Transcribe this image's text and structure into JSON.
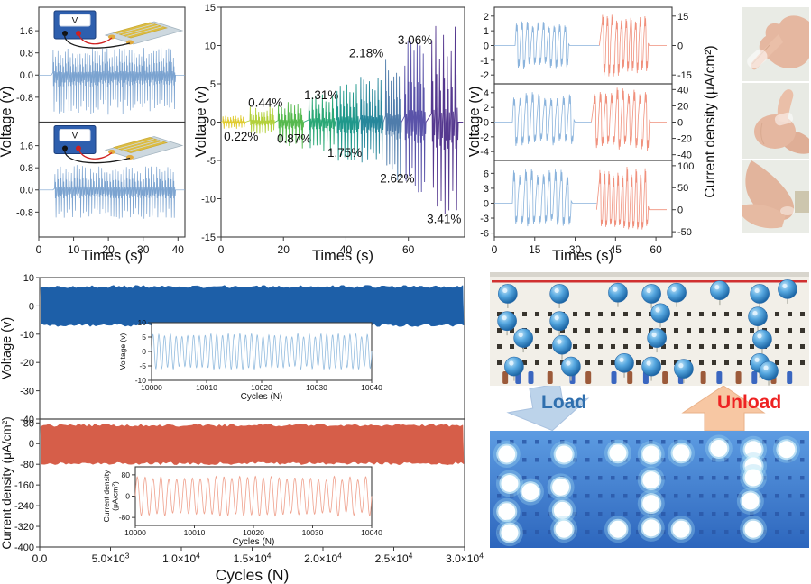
{
  "arrows": {
    "load": "Load",
    "unload": "Unload",
    "load_fill": "#bcd3ea",
    "load_stroke": "#a9c2e0",
    "load_text_color": "#2f6fae",
    "unload_fill": "#f7c7a3",
    "unload_stroke": "#eab289",
    "unload_text_color": "#ee2222"
  },
  "boards": {
    "unlit": {
      "rail_color": "#d03030",
      "leds": [
        [
          5.6,
          19
        ],
        [
          5.4,
          43
        ],
        [
          10.5,
          58
        ],
        [
          7.6,
          83
        ],
        [
          21.8,
          19
        ],
        [
          21.8,
          43
        ],
        [
          22.6,
          64
        ],
        [
          25.4,
          83
        ],
        [
          40.1,
          18
        ],
        [
          50.6,
          19
        ],
        [
          58.5,
          18
        ],
        [
          53.4,
          36
        ],
        [
          52.3,
          58
        ],
        [
          42.1,
          80
        ],
        [
          50.6,
          83
        ],
        [
          60.7,
          85
        ],
        [
          72.0,
          16
        ],
        [
          84.5,
          19
        ],
        [
          93.2,
          15
        ],
        [
          83.9,
          39
        ],
        [
          85.3,
          59
        ],
        [
          84.5,
          80
        ],
        [
          87.3,
          87
        ]
      ],
      "terminals": [
        [
          4,
          "brown"
        ],
        [
          8,
          "blue"
        ],
        [
          12,
          "blue"
        ],
        [
          18,
          "brown"
        ],
        [
          25,
          "blue"
        ],
        [
          30,
          "brown"
        ],
        [
          38,
          "blue"
        ],
        [
          43,
          "brown"
        ],
        [
          48,
          "blue"
        ],
        [
          54,
          "brown"
        ],
        [
          59,
          "blue"
        ],
        [
          66,
          "brown"
        ],
        [
          71,
          "blue"
        ],
        [
          77,
          "brown"
        ],
        [
          82,
          "blue"
        ],
        [
          88,
          "brown"
        ],
        [
          93,
          "blue"
        ]
      ]
    },
    "lit": {
      "leds": [
        [
          5.3,
          20
        ],
        [
          6.2,
          45
        ],
        [
          12.7,
          52
        ],
        [
          5.3,
          69
        ],
        [
          6.2,
          87
        ],
        [
          23.2,
          20
        ],
        [
          22.2,
          48
        ],
        [
          22.7,
          68
        ],
        [
          23.2,
          84
        ],
        [
          40.1,
          19
        ],
        [
          50.5,
          20
        ],
        [
          59.9,
          19
        ],
        [
          50.5,
          42
        ],
        [
          50.5,
          62
        ],
        [
          40.1,
          84
        ],
        [
          50.5,
          83
        ],
        [
          59.9,
          84
        ],
        [
          71.7,
          15
        ],
        [
          82.5,
          16
        ],
        [
          92.9,
          16
        ],
        [
          82.5,
          30
        ],
        [
          82.5,
          40
        ],
        [
          81.6,
          60
        ],
        [
          82.5,
          84
        ]
      ]
    }
  },
  "chart_data": {
    "panelA": {
      "type": "line",
      "xlabel": "Times (s)",
      "ylabel": "Voltage (v)",
      "meter_label": "V",
      "xlim": [
        0,
        42
      ],
      "xticks": [
        "0",
        "10",
        "20",
        "30",
        "40"
      ],
      "line_color": "#7ba3d0",
      "subplots": [
        {
          "yticks": [
            "1.6",
            "0.8",
            "0.0",
            "-0.8"
          ],
          "ylim": [
            -1.7,
            2.45
          ],
          "burst": {
            "t0": 4,
            "t1": 39.3,
            "pos": 0.9,
            "neg": 1.3,
            "cycles": 50
          }
        },
        {
          "yticks": [
            "1.6",
            "0.8",
            "0.0",
            "-0.8"
          ],
          "ylim": [
            -1.7,
            2.45
          ],
          "burst": {
            "t0": 4.5,
            "t1": 39.3,
            "pos": 0.82,
            "neg": 0.95,
            "cycles": 44
          }
        }
      ]
    },
    "panelB": {
      "type": "line",
      "xlabel": "Times (s)",
      "ylabel": "Voltage (v)",
      "xlim": [
        0,
        78
      ],
      "xticks": [
        "0",
        "20",
        "40",
        "60"
      ],
      "ylim": [
        -15,
        15
      ],
      "yticks": [
        "15",
        "10",
        "5",
        "0",
        "-5",
        "-10",
        "-15"
      ],
      "segments": [
        {
          "label": "0.22%",
          "text_color": "#cf9e1e",
          "line_color": "#e0cb2e",
          "t0": 0.5,
          "t1": 7.8,
          "cycles": 9,
          "amp": 0.8,
          "neg": 0.8,
          "lx": 0.9,
          "ly": -2.4
        },
        {
          "label": "0.44%",
          "text_color": "#9cc22b",
          "line_color": "#b3d13c",
          "t0": 9.2,
          "t1": 17.3,
          "cycles": 9,
          "amp": 1.9,
          "neg": 1.4,
          "lx": 8.7,
          "ly": 2.0
        },
        {
          "label": "0.87%",
          "text_color": "#2da44e",
          "line_color": "#55b94d",
          "t0": 18.2,
          "t1": 26.5,
          "cycles": 8,
          "amp": 2.4,
          "neg": 3.3,
          "lx": 17.9,
          "ly": -2.7
        },
        {
          "label": "1.31%",
          "text_color": "#23a077",
          "line_color": "#2aa876",
          "t0": 28,
          "t1": 36.6,
          "cycles": 8,
          "amp": 3.4,
          "neg": 3.6,
          "lx": 26.6,
          "ly": 3.0
        },
        {
          "label": "1.75%",
          "text_color": "#1d9389",
          "line_color": "#1f988b",
          "t0": 37,
          "t1": 44.2,
          "cycles": 7,
          "amp": 4.7,
          "neg": 4.8,
          "lx": 34.1,
          "ly": -4.5
        },
        {
          "label": "2.18%",
          "text_color": "#1e8a9c",
          "line_color": "#26879b",
          "t0": 44.6,
          "t1": 52,
          "cycles": 8,
          "amp": 5.6,
          "neg": 5.0,
          "lx": 41.0,
          "ly": 8.5
        },
        {
          "label": "2.62%",
          "text_color": "#15798f",
          "line_color": "#4f7cab",
          "t0": 52.6,
          "t1": 57.8,
          "cycles": 6,
          "amp": 7.4,
          "neg": 8.3,
          "lx": 50.9,
          "ly": -7.9
        },
        {
          "label": "3.06%",
          "text_color": "#3b3ec3",
          "line_color": "#5a53a9",
          "t0": 58.7,
          "t1": 65.6,
          "cycles": 7,
          "amp": 9.7,
          "neg": 8.6,
          "lx": 56.6,
          "ly": 10.2
        },
        {
          "label": "3.41%",
          "text_color": "#3432cb",
          "line_color": "#55388f",
          "t0": 67.3,
          "t1": 76,
          "cycles": 7,
          "amp": 11.7,
          "neg": 12.3,
          "lx": 65.9,
          "ly": -13.2
        }
      ]
    },
    "panelC": {
      "type": "line",
      "xlabel": "Times (s)",
      "ylabel_left": "Voltage (v)",
      "ylabel_right": "Current density (μA/cm²)",
      "xlim": [
        0,
        66
      ],
      "xticks": [
        "0",
        "15",
        "30",
        "45",
        "60"
      ],
      "blue_color": "#8ab3dc",
      "red_color": "#f0907c",
      "subplots": [
        {
          "lticks": [
            "2",
            "1",
            "0",
            "-1",
            "-2"
          ],
          "llim": [
            -2.6,
            2.6
          ],
          "rticks": [
            "15",
            "0",
            "-15"
          ],
          "rlim": [
            -19.5,
            19.5
          ],
          "blue": {
            "t0": 8,
            "t1": 28,
            "pos": 1.55,
            "neg": 1.55,
            "cycles": 10
          },
          "red": {
            "t0": 40,
            "t1": 57.5,
            "pos": 15,
            "neg": 15,
            "cycles": 10
          }
        },
        {
          "lticks": [
            "4",
            "2",
            "0",
            "-2",
            "-4"
          ],
          "llim": [
            -5.2,
            5.2
          ],
          "rticks": [
            "40",
            "20",
            "0",
            "-20",
            "-40"
          ],
          "rlim": [
            -47,
            47
          ],
          "blue": {
            "t0": 7,
            "t1": 30,
            "pos": 4.0,
            "neg": 3.2,
            "cycles": 10
          },
          "red": {
            "t0": 37,
            "t1": 58,
            "pos": 40,
            "neg": 34,
            "cycles": 10
          }
        },
        {
          "lticks": [
            "6",
            "3",
            "0",
            "-3",
            "-6"
          ],
          "llim": [
            -6.8,
            8.6
          ],
          "rticks": [
            "100",
            "50",
            "0",
            "-50"
          ],
          "rlim": [
            -62,
            112
          ],
          "blue": {
            "t0": 7,
            "t1": 29,
            "pos": 7.0,
            "neg": 4.4,
            "cycles": 10
          },
          "red": {
            "t0": 39,
            "t1": 57.5,
            "pos": 95,
            "neg": 43,
            "cycles": 11
          }
        }
      ]
    },
    "panelD": {
      "type": "line",
      "xlabel": "Cycles (N)",
      "xlim": [
        0,
        30000
      ],
      "xticks": [
        {
          "v": 0,
          "t": "0.0"
        },
        {
          "v": 5000,
          "t": "5.0×10^3"
        },
        {
          "v": 10000,
          "t": "1.0×10^4"
        },
        {
          "v": 15000,
          "t": "1.5×10^4"
        },
        {
          "v": 20000,
          "t": "2.0×10^4"
        },
        {
          "v": 25000,
          "t": "2.5×10^4"
        },
        {
          "v": 30000,
          "t": "3.0×10^4"
        }
      ],
      "subplots": [
        {
          "ylabel": "Voltage (v)",
          "yticks": [
            "10",
            "0",
            "-10",
            "-20",
            "-30",
            "-40"
          ],
          "ylim": [
            -40,
            10
          ],
          "band_pos": 7.3,
          "band_neg": 7.3,
          "color": "#1d5fa8",
          "inset": {
            "ylabel": [
              "Voltage (v)"
            ],
            "yticks": [
              "10",
              "5",
              "0",
              "-5",
              "-10"
            ],
            "ylim": [
              -10,
              10
            ],
            "amp": 6.2,
            "cycles": 38,
            "xticks": [
              "10000",
              "10010",
              "10020",
              "10030",
              "10040"
            ],
            "xlabel": "Cycles (N)",
            "color": "#93bcdf"
          }
        },
        {
          "ylabel": "Current density (μA/cm²)",
          "yticks": [
            "80",
            "0",
            "-80",
            "-160",
            "-240",
            "-320",
            "-400"
          ],
          "ylim": [
            -400,
            95
          ],
          "band_pos": 76,
          "band_neg": 82,
          "color": "#d65e49",
          "inset": {
            "ylabel": [
              "Current density",
              "(μA/cm²)"
            ],
            "yticks": [
              "80",
              "0",
              "-80"
            ],
            "ylim": [
              -110,
              110
            ],
            "amp": 75,
            "cycles": 30,
            "xticks": [
              "10000",
              "10010",
              "10020",
              "10030",
              "10040"
            ],
            "xlabel": "Cycles (N)",
            "color": "#efa08c"
          }
        }
      ]
    }
  }
}
